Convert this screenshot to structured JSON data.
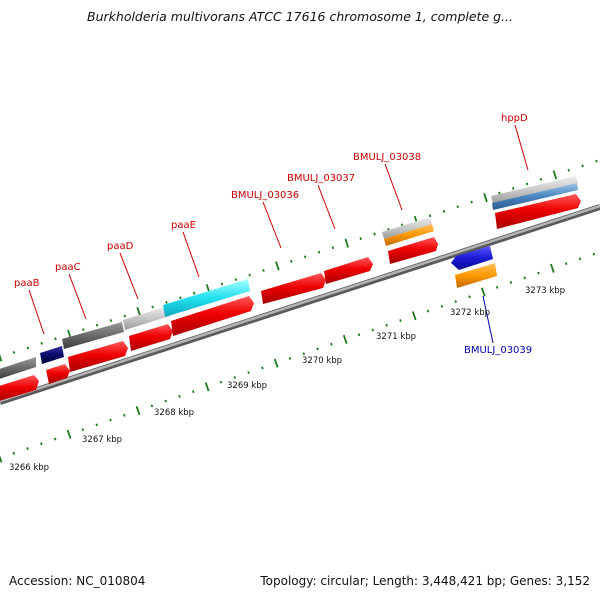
{
  "title": "Burkholderia multivorans ATCC 17616 chromosome 1, complete g...",
  "footer": {
    "accession": "Accession: NC_010804",
    "summary": "Topology: circular; Length: 3,448,421 bp; Genes: 3,152"
  },
  "colors": {
    "forward_gene": "#ee0000",
    "reverse_gene": "#1a1ad6",
    "label_forward": "#cc0000",
    "label_reverse": "#0000aa",
    "backbone": "#8a8a8a",
    "tick": "#1e7a1e",
    "cog_cyan": "#22e0f0",
    "cog_gray": "#6a6a6a",
    "cog_light_gray": "#c8c8c8",
    "cog_navy": "#0a0a6a",
    "cog_orange": "#ff9900",
    "cog_steel_blue": "#4a86c0"
  },
  "kbp_labels": [
    "3266 kbp",
    "3267 kbp",
    "3268 kbp",
    "3269 kbp",
    "3270 kbp",
    "3271 kbp",
    "3272 kbp",
    "3273 kbp"
  ],
  "gene_labels": {
    "forward": [
      "paaB",
      "paaC",
      "paaD",
      "paaE",
      "BMULJ_03036",
      "BMULJ_03037",
      "BMULJ_03038",
      "hppD"
    ],
    "reverse": [
      "BMULJ_03039"
    ]
  }
}
